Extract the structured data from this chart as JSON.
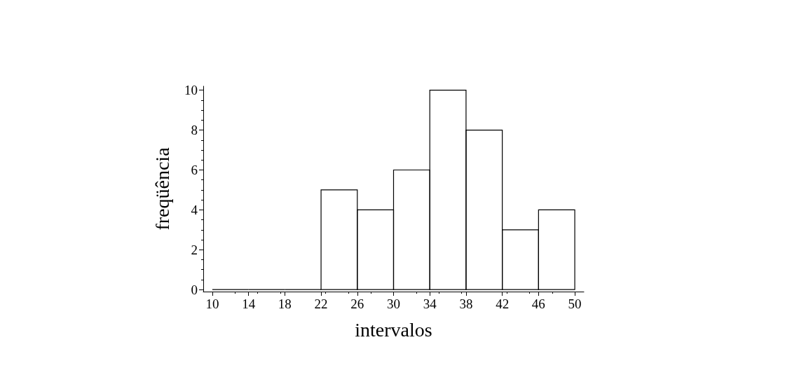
{
  "chart_data": {
    "type": "histogram",
    "xlabel": "intervalos",
    "ylabel": "freqüência",
    "bins": [
      10,
      14,
      18,
      22,
      26,
      30,
      34,
      38,
      42,
      46,
      50
    ],
    "values": [
      0,
      0,
      0,
      5,
      4,
      6,
      10,
      8,
      3,
      4
    ],
    "color": "#000000",
    "xlim": [
      9,
      51
    ],
    "xticks": [
      10,
      14,
      18,
      22,
      26,
      30,
      34,
      38,
      42,
      46,
      50
    ],
    "ylim": [
      -0.1,
      10.2
    ],
    "yticks": [
      0,
      2,
      4,
      6,
      8,
      10
    ],
    "grid": false
  }
}
